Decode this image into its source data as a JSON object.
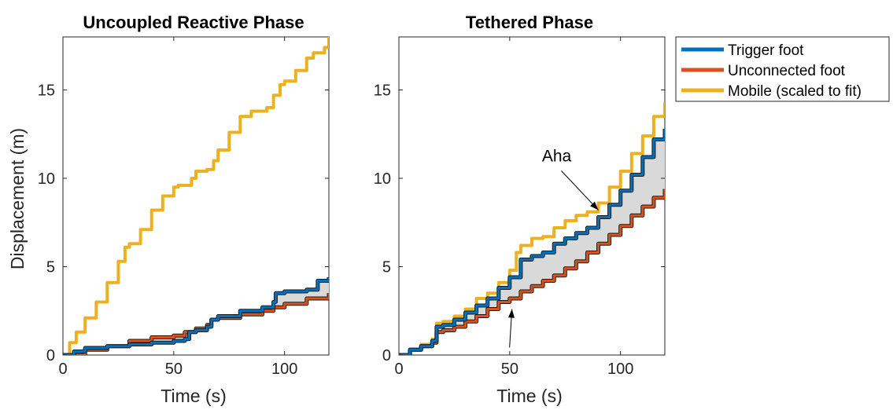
{
  "chart_data": [
    {
      "type": "line",
      "title": "Uncoupled Reactive Phase",
      "xlabel": "Time (s)",
      "ylabel": "Displacement (m)",
      "xlim": [
        0,
        120
      ],
      "ylim": [
        0,
        18
      ],
      "xticks": [
        "0",
        "50",
        "100"
      ],
      "yticks": [
        "0",
        "5",
        "10",
        "15"
      ],
      "shaded_region": "between Trigger foot and Unconnected foot",
      "series": [
        {
          "name": "Trigger foot",
          "color": "#0072BD",
          "x": [
            0,
            5,
            10,
            20,
            30,
            40,
            50,
            55,
            57,
            60,
            65,
            67,
            70,
            80,
            90,
            95,
            96,
            100,
            110,
            115,
            120
          ],
          "y": [
            0,
            0.2,
            0.4,
            0.5,
            0.6,
            0.7,
            0.8,
            0.9,
            1.3,
            1.4,
            1.6,
            2.0,
            2.2,
            2.5,
            2.7,
            3.0,
            3.5,
            3.6,
            3.7,
            4.2,
            4.4
          ]
        },
        {
          "name": "Unconnected foot",
          "color": "#D95319",
          "x": [
            0,
            10,
            20,
            30,
            40,
            50,
            55,
            60,
            65,
            67,
            70,
            80,
            90,
            95,
            100,
            110,
            120
          ],
          "y": [
            0,
            0.3,
            0.5,
            0.8,
            1.0,
            1.1,
            1.3,
            1.5,
            1.7,
            2.0,
            2.1,
            2.3,
            2.5,
            2.7,
            2.9,
            3.2,
            3.5
          ]
        },
        {
          "name": "Mobile (scaled to fit)",
          "color": "#EDB120",
          "x": [
            0,
            3,
            6,
            10,
            15,
            20,
            25,
            28,
            30,
            35,
            40,
            45,
            50,
            52,
            55,
            58,
            60,
            62,
            65,
            68,
            70,
            75,
            80,
            85,
            90,
            92,
            95,
            98,
            100,
            105,
            110,
            113,
            115,
            118,
            120
          ],
          "y": [
            0,
            0.7,
            1.3,
            2.1,
            3.0,
            4.1,
            5.3,
            6.1,
            6.3,
            7.1,
            8.2,
            9.0,
            9.5,
            9.6,
            9.6,
            10.0,
            10.4,
            10.4,
            10.5,
            11.0,
            11.6,
            12.6,
            13.5,
            13.8,
            13.8,
            14.0,
            14.7,
            15.3,
            15.5,
            16.1,
            16.8,
            17.1,
            17.1,
            17.4,
            18.0
          ]
        }
      ]
    },
    {
      "type": "line",
      "title": "Tethered Phase",
      "xlabel": "Time (s)",
      "xlim": [
        0,
        120
      ],
      "ylim": [
        0,
        18
      ],
      "xticks": [
        "0",
        "50",
        "100"
      ],
      "yticks": [
        "0",
        "5",
        "10",
        "15"
      ],
      "shaded_region": "between Trigger foot and Unconnected foot",
      "annotations": [
        {
          "text": "Aha",
          "arrow_to": [
            90,
            8.2
          ]
        },
        {
          "text": "",
          "arrow_to": [
            51,
            2.6
          ]
        }
      ],
      "series": [
        {
          "name": "Trigger foot",
          "color": "#0072BD",
          "x": [
            0,
            5,
            10,
            15,
            17,
            20,
            25,
            30,
            35,
            40,
            45,
            50,
            55,
            60,
            65,
            70,
            75,
            80,
            85,
            90,
            95,
            100,
            105,
            110,
            115,
            120
          ],
          "y": [
            0,
            0.3,
            0.5,
            0.8,
            1.6,
            1.7,
            2.0,
            2.4,
            2.8,
            3.2,
            3.8,
            4.4,
            5.4,
            5.6,
            5.8,
            6.3,
            6.6,
            6.9,
            7.2,
            7.8,
            8.5,
            9.3,
            10.2,
            11.2,
            12.2,
            12.8
          ]
        },
        {
          "name": "Unconnected foot",
          "color": "#D95319",
          "x": [
            0,
            5,
            10,
            15,
            17,
            20,
            25,
            30,
            35,
            40,
            45,
            50,
            55,
            60,
            65,
            70,
            75,
            80,
            85,
            90,
            95,
            100,
            105,
            110,
            115,
            120
          ],
          "y": [
            0,
            0.3,
            0.5,
            0.7,
            1.3,
            1.4,
            1.6,
            1.9,
            2.2,
            2.6,
            3.0,
            3.2,
            3.6,
            3.9,
            4.2,
            4.5,
            4.9,
            5.3,
            5.8,
            6.3,
            6.8,
            7.3,
            7.9,
            8.4,
            8.9,
            9.4
          ]
        },
        {
          "name": "Mobile (scaled to fit)",
          "color": "#EDB120",
          "x": [
            0,
            5,
            10,
            15,
            17,
            20,
            25,
            30,
            35,
            40,
            45,
            50,
            53,
            55,
            60,
            65,
            70,
            75,
            80,
            85,
            90,
            95,
            100,
            105,
            110,
            115,
            120
          ],
          "y": [
            0,
            0.3,
            0.6,
            0.9,
            1.8,
            1.9,
            2.2,
            2.6,
            3.2,
            3.5,
            4.1,
            4.8,
            5.8,
            6.2,
            6.6,
            6.7,
            7.2,
            7.6,
            7.9,
            8.1,
            8.6,
            9.5,
            10.4,
            11.4,
            12.4,
            13.5,
            14.3
          ]
        }
      ]
    }
  ],
  "legend": {
    "items": [
      {
        "label": "Trigger foot",
        "color": "#0072BD"
      },
      {
        "label": "Unconnected foot",
        "color": "#D95319"
      },
      {
        "label": "Mobile (scaled to fit)",
        "color": "#EDB120"
      }
    ]
  },
  "colors": {
    "fill_between": "#d9d9d9",
    "axes": "#262626"
  }
}
